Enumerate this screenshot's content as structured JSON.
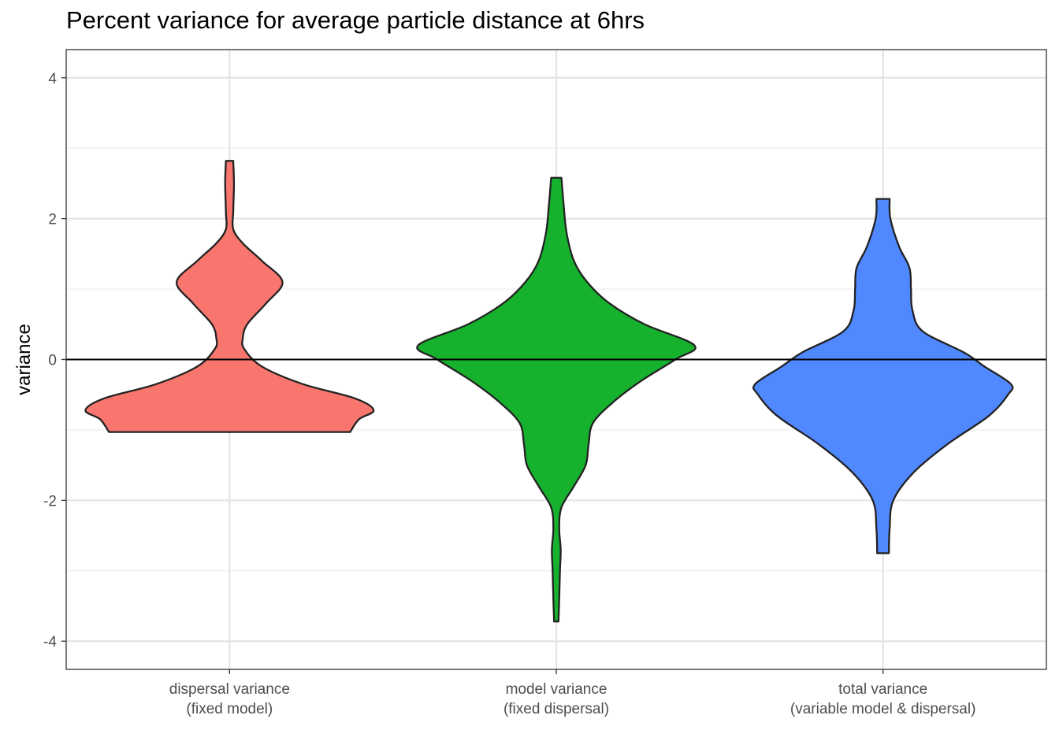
{
  "chart_data": {
    "type": "violin",
    "title": "Percent variance for average particle distance at 6hrs",
    "xlabel": "",
    "ylabel": "variance",
    "ylim": [
      -4.4,
      4.4
    ],
    "yticks": [
      -4,
      -2,
      0,
      2,
      4
    ],
    "grid": true,
    "reference_line_y": 0,
    "categories": [
      {
        "line1": "dispersal variance",
        "line2": "(fixed model)"
      },
      {
        "line1": "model variance",
        "line2": "(fixed dispersal)"
      },
      {
        "line1": "total variance",
        "line2": "(variable model & dispersal)"
      }
    ],
    "series": [
      {
        "color": "#F8766D",
        "min": -1.03,
        "max": 2.82,
        "profile": [
          [
            -1.03,
            0.82
          ],
          [
            -0.85,
            0.88
          ],
          [
            -0.72,
            0.98
          ],
          [
            -0.55,
            0.85
          ],
          [
            -0.35,
            0.5
          ],
          [
            -0.1,
            0.22
          ],
          [
            0.15,
            0.1
          ],
          [
            0.3,
            0.09
          ],
          [
            0.5,
            0.12
          ],
          [
            0.8,
            0.25
          ],
          [
            1.1,
            0.36
          ],
          [
            1.4,
            0.22
          ],
          [
            1.65,
            0.09
          ],
          [
            1.85,
            0.025
          ],
          [
            2.1,
            0.025
          ],
          [
            2.5,
            0.03
          ],
          [
            2.82,
            0.025
          ]
        ]
      },
      {
        "color": "#16B22E",
        "min": -3.72,
        "max": 2.58,
        "profile": [
          [
            -3.72,
            0.015
          ],
          [
            -3.4,
            0.02
          ],
          [
            -3.0,
            0.025
          ],
          [
            -2.7,
            0.03
          ],
          [
            -2.4,
            0.02
          ],
          [
            -2.1,
            0.035
          ],
          [
            -1.8,
            0.12
          ],
          [
            -1.5,
            0.2
          ],
          [
            -1.2,
            0.22
          ],
          [
            -0.9,
            0.25
          ],
          [
            -0.6,
            0.39
          ],
          [
            -0.3,
            0.58
          ],
          [
            0.0,
            0.81
          ],
          [
            0.2,
            0.94
          ],
          [
            0.5,
            0.6
          ],
          [
            0.8,
            0.36
          ],
          [
            1.1,
            0.21
          ],
          [
            1.4,
            0.12
          ],
          [
            1.8,
            0.07
          ],
          [
            2.2,
            0.05
          ],
          [
            2.58,
            0.035
          ]
        ]
      },
      {
        "color": "#4F88FF",
        "min": -2.75,
        "max": 2.28,
        "profile": [
          [
            -2.75,
            0.04
          ],
          [
            -2.4,
            0.045
          ],
          [
            -2.0,
            0.07
          ],
          [
            -1.6,
            0.21
          ],
          [
            -1.2,
            0.44
          ],
          [
            -0.8,
            0.72
          ],
          [
            -0.5,
            0.85
          ],
          [
            -0.35,
            0.87
          ],
          [
            -0.1,
            0.69
          ],
          [
            0.1,
            0.55
          ],
          [
            0.4,
            0.27
          ],
          [
            0.7,
            0.2
          ],
          [
            1.0,
            0.19
          ],
          [
            1.3,
            0.18
          ],
          [
            1.6,
            0.11
          ],
          [
            2.0,
            0.05
          ],
          [
            2.28,
            0.045
          ]
        ]
      }
    ]
  }
}
